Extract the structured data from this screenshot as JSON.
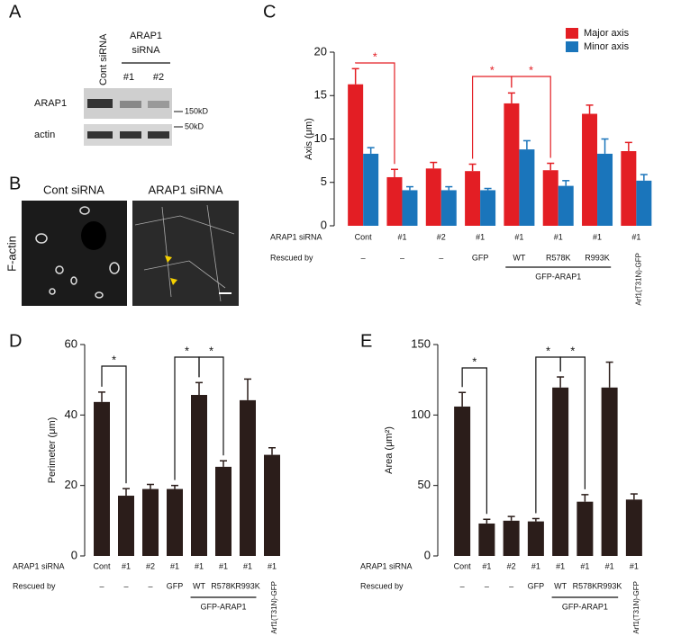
{
  "panels": {
    "A": {
      "label": "A",
      "lanes": [
        "Cont siRNA",
        "ARAP1",
        "siRNA",
        "#1",
        "#2"
      ],
      "rows": [
        "ARAP1",
        "actin"
      ],
      "markers": [
        "150kD",
        "50kD"
      ]
    },
    "B": {
      "label": "B",
      "titles": [
        "Cont siRNA",
        "ARAP1 siRNA"
      ],
      "stain": "F-actin"
    }
  },
  "chart_data": [
    {
      "type": "bar",
      "panel_label": "C",
      "ylabel": "Axis (μm)",
      "row_labels": [
        "ARAP1 siRNA",
        "Rescued by"
      ],
      "categories": [
        "Cont",
        "#1",
        "#2",
        "#1",
        "#1",
        "#1",
        "#1",
        "#1"
      ],
      "rescue": [
        "–",
        "–",
        "–",
        "GFP",
        "WT",
        "R578K",
        "R993K",
        "Arf1(T31N)-GFP"
      ],
      "group_label": "GFP-ARAP1",
      "annotations": [
        "*",
        "*",
        "*"
      ],
      "series": [
        {
          "name": "Major axis",
          "color": "#e31e24",
          "values": [
            16.3,
            5.6,
            6.6,
            6.3,
            14.1,
            6.4,
            12.9,
            8.6
          ],
          "errors": [
            1.8,
            0.9,
            0.7,
            0.8,
            1.2,
            0.8,
            1.0,
            1.0
          ]
        },
        {
          "name": "Minor axis",
          "color": "#1a75bb",
          "values": [
            8.3,
            4.1,
            4.1,
            4.1,
            8.8,
            4.6,
            8.3,
            5.2
          ],
          "errors": [
            0.7,
            0.4,
            0.4,
            0.2,
            1.0,
            0.6,
            1.7,
            0.7
          ]
        }
      ],
      "ylim": [
        0,
        20
      ],
      "yticks": [
        0,
        5,
        10,
        15,
        20
      ]
    },
    {
      "type": "bar",
      "panel_label": "D",
      "ylabel": "Perimeter (μm)",
      "row_labels": [
        "ARAP1 siRNA",
        "Rescued by"
      ],
      "categories": [
        "Cont",
        "#1",
        "#2",
        "#1",
        "#1",
        "#1",
        "#1",
        "#1"
      ],
      "rescue": [
        "–",
        "–",
        "–",
        "GFP",
        "WT",
        "R578K",
        "R993K",
        "Arf1(T31N)-GFP"
      ],
      "group_label": "GFP-ARAP1",
      "annotations": [
        "*",
        "*",
        "*"
      ],
      "color": "#2b1d1a",
      "values": [
        43.7,
        17.1,
        19,
        19,
        45.7,
        25.3,
        44.2,
        28.7
      ],
      "errors": [
        2.8,
        2,
        1.3,
        1,
        3.5,
        1.7,
        6,
        2
      ],
      "ylim": [
        0,
        60
      ],
      "yticks": [
        0,
        20,
        40,
        60
      ]
    },
    {
      "type": "bar",
      "panel_label": "E",
      "ylabel": "Area (μm²)",
      "row_labels": [
        "ARAP1 siRNA",
        "Rescued by"
      ],
      "categories": [
        "Cont",
        "#1",
        "#2",
        "#1",
        "#1",
        "#1",
        "#1",
        "#1"
      ],
      "rescue": [
        "–",
        "–",
        "–",
        "GFP",
        "WT",
        "R578K",
        "R993K",
        "Arf1(T31N)-GFP"
      ],
      "group_label": "GFP-ARAP1",
      "annotations": [
        "*",
        "*",
        "*"
      ],
      "color": "#2b1d1a",
      "values": [
        106,
        23,
        25,
        24.5,
        119.5,
        38.5,
        119.5,
        40
      ],
      "errors": [
        10,
        3,
        3,
        2,
        7.5,
        5,
        18,
        4
      ],
      "ylim": [
        0,
        150
      ],
      "yticks": [
        0,
        50,
        100,
        150
      ]
    }
  ]
}
